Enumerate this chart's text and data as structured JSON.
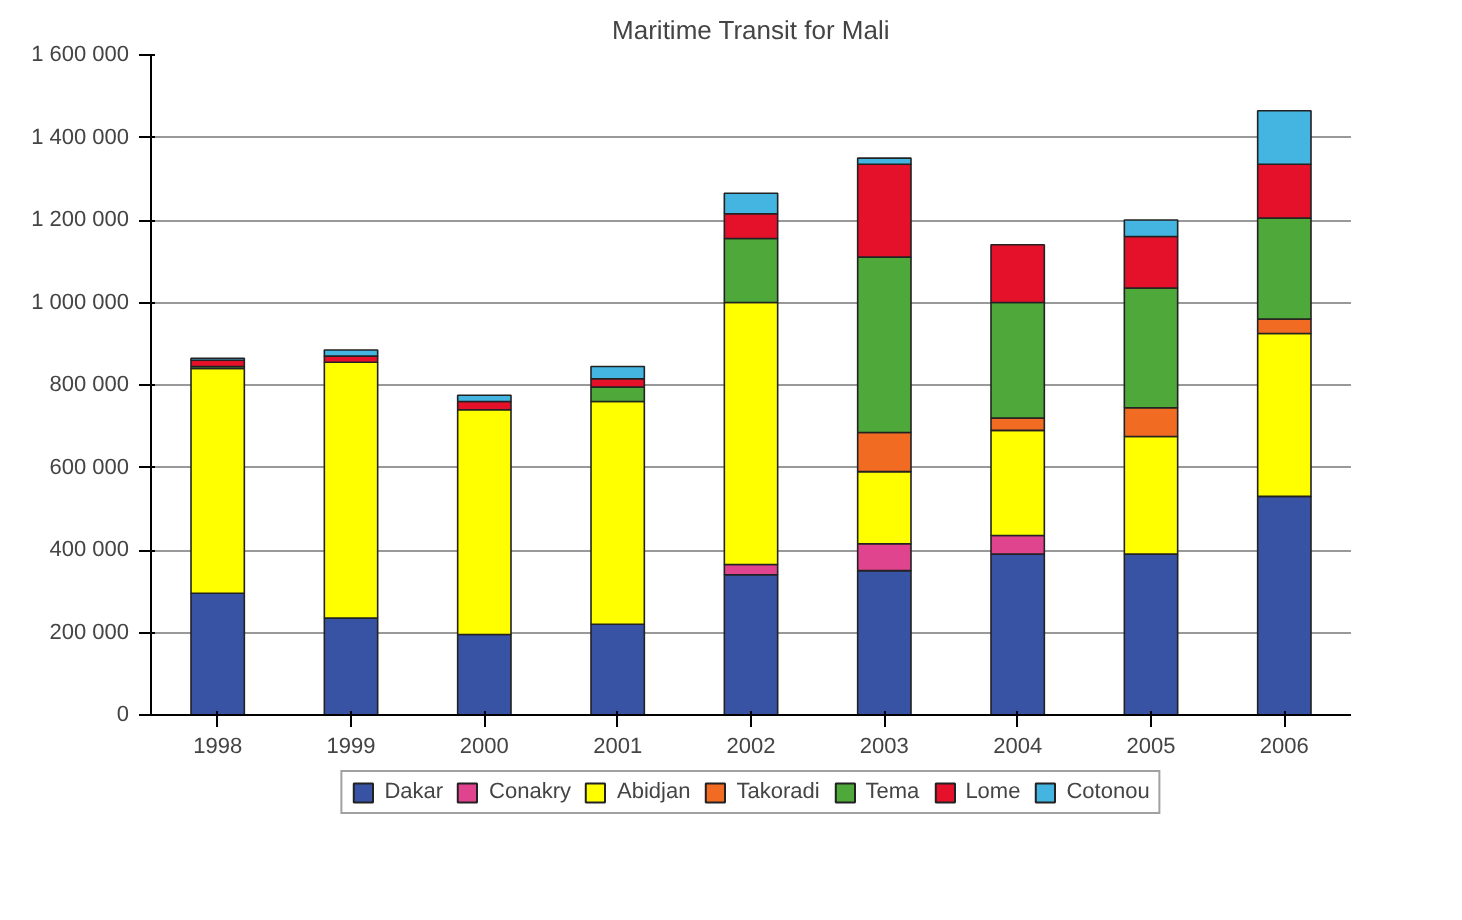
{
  "chart_data": {
    "type": "bar",
    "title": "Maritime Transit for Mali",
    "stacked": true,
    "categories": [
      "1998",
      "1999",
      "2000",
      "2001",
      "2002",
      "2003",
      "2004",
      "2005",
      "2006"
    ],
    "series": [
      {
        "name": "Dakar",
        "color": "#3953a4",
        "values": [
          295000,
          235000,
          195000,
          220000,
          340000,
          350000,
          390000,
          390000,
          530000
        ]
      },
      {
        "name": "Conakry",
        "color": "#e0448f",
        "values": [
          null,
          null,
          null,
          null,
          25000,
          65000,
          45000,
          null,
          null
        ]
      },
      {
        "name": "Abidjan",
        "color": "#ffff00",
        "values": [
          545000,
          620000,
          545000,
          540000,
          635000,
          175000,
          255000,
          285000,
          395000
        ]
      },
      {
        "name": "Takoradi",
        "color": "#f26b22",
        "values": [
          null,
          null,
          null,
          null,
          null,
          95000,
          30000,
          70000,
          35000
        ]
      },
      {
        "name": "Tema",
        "color": "#4ea83a",
        "values": [
          5000,
          null,
          null,
          35000,
          155000,
          425000,
          280000,
          290000,
          245000
        ]
      },
      {
        "name": "Lome",
        "color": "#e5112a",
        "values": [
          15000,
          15000,
          20000,
          20000,
          60000,
          225000,
          140000,
          125000,
          130000
        ]
      },
      {
        "name": "Cotonou",
        "color": "#43b5e0",
        "values": [
          5000,
          15000,
          15000,
          30000,
          50000,
          15000,
          null,
          40000,
          130000
        ]
      }
    ],
    "ylim": [
      0,
      1600000
    ],
    "yticks": [
      0,
      {
        "value": 200000,
        "label": "200 000"
      },
      {
        "value": 400000,
        "label": "400 000"
      },
      {
        "value": 600000,
        "label": "600 000"
      },
      {
        "value": 800000,
        "label": "800 000"
      },
      {
        "value": 1000000,
        "label": "1 000 000"
      },
      {
        "value": 1200000,
        "label": "1 200 000"
      },
      {
        "value": 1400000,
        "label": "1 400 000"
      },
      {
        "value": 1600000,
        "label": "1 600 000"
      }
    ],
    "grid": "y",
    "legend": "bottom"
  }
}
